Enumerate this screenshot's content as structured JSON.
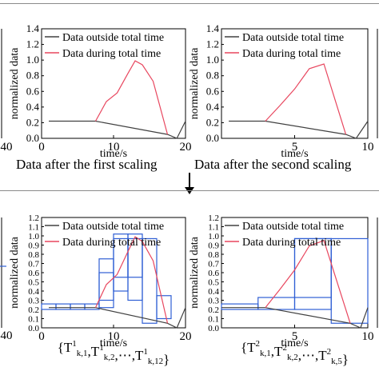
{
  "arrow_icon": "down-arrow-icon",
  "colors": {
    "outside": "#404040",
    "during": "#e8475f",
    "box": "#2f5fd4",
    "axis": "#000000"
  },
  "chart_data": [
    {
      "type": "line",
      "xlabel": "time/s",
      "ylabel": "normalized data",
      "xlim": [
        0,
        20
      ],
      "ylim": [
        0,
        1.4
      ],
      "xticks": [
        "0",
        "10",
        "20"
      ],
      "yticks": [
        "0.0",
        "0.2",
        "0.4",
        "0.6",
        "0.8",
        "1.0",
        "1.2",
        "1.4"
      ],
      "series": [
        {
          "name": "Data outside total time",
          "x": [
            1,
            7.5,
            17.5,
            18.8,
            20
          ],
          "y": [
            0.22,
            0.22,
            0.05,
            0.0,
            0.22
          ]
        },
        {
          "name": "Data during total time",
          "x": [
            7.5,
            9,
            10.5,
            12,
            13,
            14,
            15.5,
            17.5
          ],
          "y": [
            0.22,
            0.47,
            0.58,
            0.83,
            0.99,
            0.94,
            0.73,
            0.05
          ]
        }
      ],
      "caption": "Data after the first scaling"
    },
    {
      "type": "line",
      "xlabel": "time/s",
      "ylabel": "normalized data",
      "xlim": [
        0,
        10
      ],
      "ylim": [
        0,
        1.4
      ],
      "xticks": [
        "5",
        "10"
      ],
      "yticks": [
        "0.0",
        "0.2",
        "0.4",
        "0.6",
        "0.8",
        "1.0",
        "1.2",
        "1.4"
      ],
      "series": [
        {
          "name": "Data outside total time",
          "x": [
            0.5,
            3,
            8.5,
            9.2,
            10
          ],
          "y": [
            0.22,
            0.22,
            0.05,
            0.0,
            0.22
          ]
        },
        {
          "name": "Data during total time",
          "x": [
            3,
            4,
            5,
            6,
            7,
            8.5
          ],
          "y": [
            0.22,
            0.42,
            0.63,
            0.89,
            0.95,
            0.05
          ]
        }
      ],
      "caption": "Data after the second scaling"
    },
    {
      "type": "line",
      "xlabel": "time/s",
      "ylabel": "normalized data",
      "xlim": [
        0,
        20
      ],
      "ylim": [
        0,
        1.2
      ],
      "xticks": [
        "0",
        "10",
        "20"
      ],
      "yticks": [
        "0.0",
        "0.1",
        "0.2",
        "0.3",
        "0.4",
        "0.5",
        "0.6",
        "0.7",
        "0.8",
        "0.9",
        "1.0",
        "1.1",
        "1.2"
      ],
      "series": [
        {
          "name": "Data outside total time",
          "x": [
            1,
            7.5,
            17.5,
            18.8,
            20
          ],
          "y": [
            0.22,
            0.22,
            0.05,
            0.0,
            0.22
          ]
        },
        {
          "name": "Data during total time",
          "x": [
            7.5,
            9,
            10.5,
            12,
            13,
            14,
            15.5,
            17.5
          ],
          "y": [
            0.22,
            0.47,
            0.58,
            0.83,
            0.99,
            0.94,
            0.73,
            0.05
          ]
        }
      ],
      "boxes": [
        [
          0,
          0.2,
          2,
          0.26
        ],
        [
          2,
          0.2,
          4,
          0.26
        ],
        [
          4,
          0.2,
          6,
          0.26
        ],
        [
          6,
          0.2,
          8,
          0.26
        ],
        [
          8,
          0.22,
          10,
          0.6
        ],
        [
          8,
          0.3,
          10,
          0.75
        ],
        [
          10,
          0.4,
          12,
          1.02
        ],
        [
          10,
          0.55,
          12,
          0.97
        ],
        [
          12,
          0.3,
          14,
          1.02
        ],
        [
          12,
          0.55,
          14,
          0.97
        ],
        [
          14,
          0.05,
          16,
          0.97
        ],
        [
          16,
          0.1,
          18,
          0.35
        ]
      ],
      "caption_main": "{T",
      "caption_parts": [
        {
          "sup": "1",
          "sub": "k,1"
        },
        {
          "sup": "1",
          "sub": "k,2"
        },
        {
          "sup": "1",
          "sub": "k,12"
        }
      ],
      "caption_sep": ",",
      "caption_ellipsis": ",⋯,",
      "caption_close": "}"
    },
    {
      "type": "line",
      "xlabel": "time/s",
      "ylabel": "normalized data",
      "xlim": [
        0,
        10
      ],
      "ylim": [
        0,
        1.2
      ],
      "xticks": [
        "5",
        "10"
      ],
      "yticks": [
        "0.0",
        "0.1",
        "0.2",
        "0.3",
        "0.4",
        "0.5",
        "0.6",
        "0.7",
        "0.8",
        "0.9",
        "1.0",
        "1.1",
        "1.2"
      ],
      "series": [
        {
          "name": "Data outside total time",
          "x": [
            0,
            3,
            8.8,
            9.5,
            10
          ],
          "y": [
            0.22,
            0.22,
            0.05,
            0.0,
            0.22
          ]
        },
        {
          "name": "Data during total time",
          "x": [
            3,
            4,
            5,
            6,
            7,
            8.8
          ],
          "y": [
            0.22,
            0.42,
            0.63,
            0.89,
            0.95,
            0.05
          ]
        }
      ],
      "boxes": [
        [
          0,
          0.2,
          2.5,
          0.26
        ],
        [
          2.5,
          0.2,
          5,
          0.33
        ],
        [
          5,
          0.2,
          7.5,
          0.97
        ],
        [
          5,
          0.33,
          7.5,
          0.97
        ],
        [
          7.5,
          0.05,
          10,
          0.97
        ]
      ],
      "caption_main": "{T",
      "caption_parts": [
        {
          "sup": "2",
          "sub": "k,1"
        },
        {
          "sup": "2",
          "sub": "k,2"
        },
        {
          "sup": "2",
          "sub": "k,5"
        }
      ],
      "caption_sep": ",",
      "caption_ellipsis": ",⋯,",
      "caption_close": "}"
    }
  ],
  "left_partial": {
    "top_tick": "40",
    "bottom_tick": "40"
  }
}
